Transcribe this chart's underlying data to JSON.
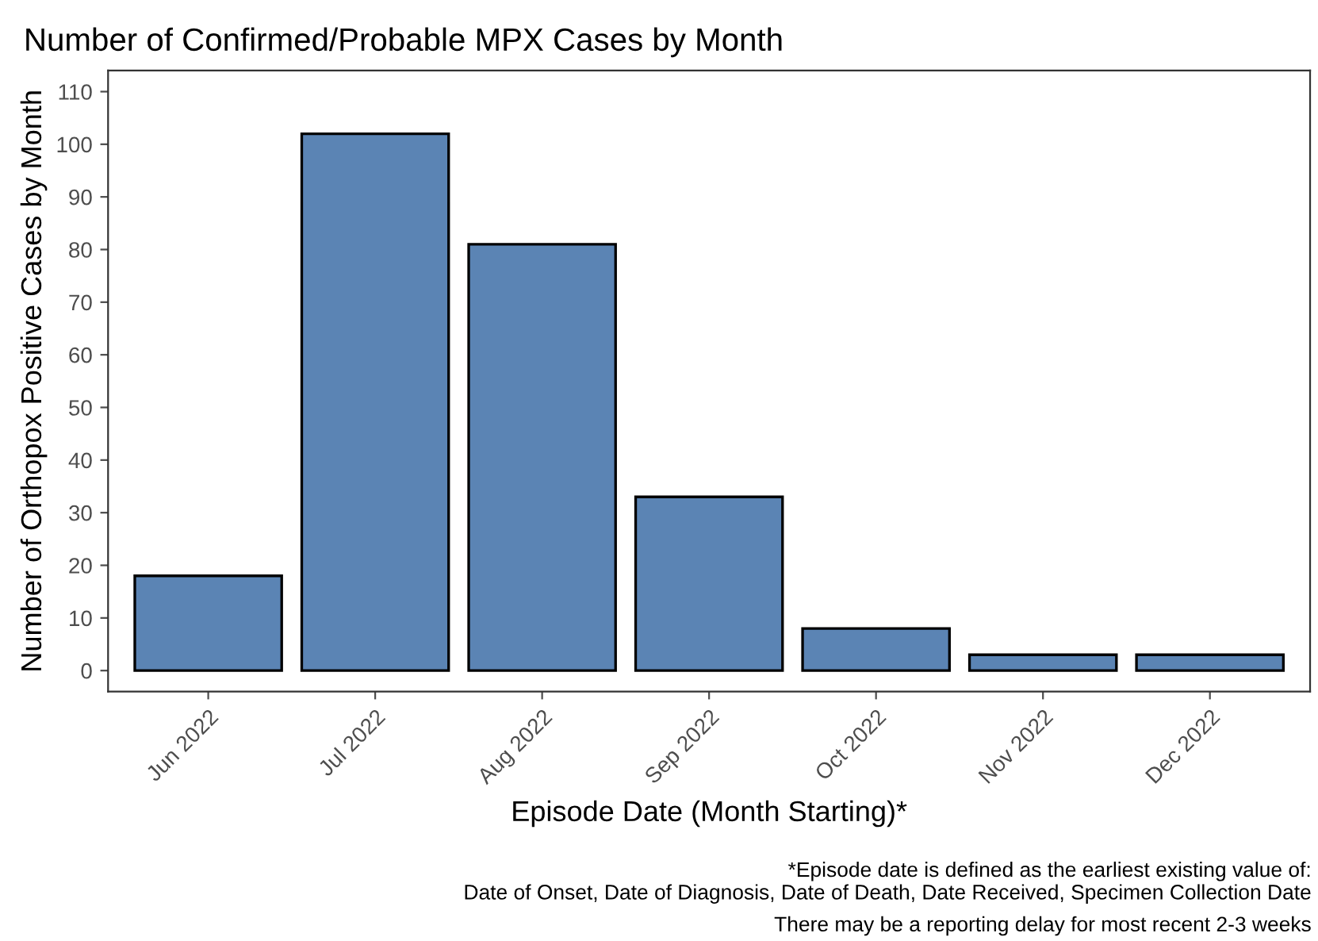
{
  "chart_data": {
    "type": "bar",
    "title": "Number of Confirmed/Probable MPX Cases by Month",
    "xlabel": "Episode Date (Month Starting)*",
    "ylabel": "Number of Orthopox Positive Cases by Month",
    "categories": [
      "Jun 2022",
      "Jul 2022",
      "Aug 2022",
      "Sep 2022",
      "Oct 2022",
      "Nov 2022",
      "Dec 2022"
    ],
    "values": [
      18,
      102,
      81,
      33,
      8,
      3,
      3
    ],
    "color": "#5b84b4",
    "ylim": [
      -4,
      114
    ],
    "yticks": [
      0,
      10,
      20,
      30,
      40,
      50,
      60,
      70,
      80,
      90,
      100,
      110
    ],
    "grid": false,
    "annotations": [
      "*Episode date is defined as the earliest existing value of:\nDate of Onset, Date of Diagnosis, Date of Death, Date Received, Specimen Collection Date",
      "There may be a reporting delay for most recent 2-3 weeks"
    ]
  }
}
